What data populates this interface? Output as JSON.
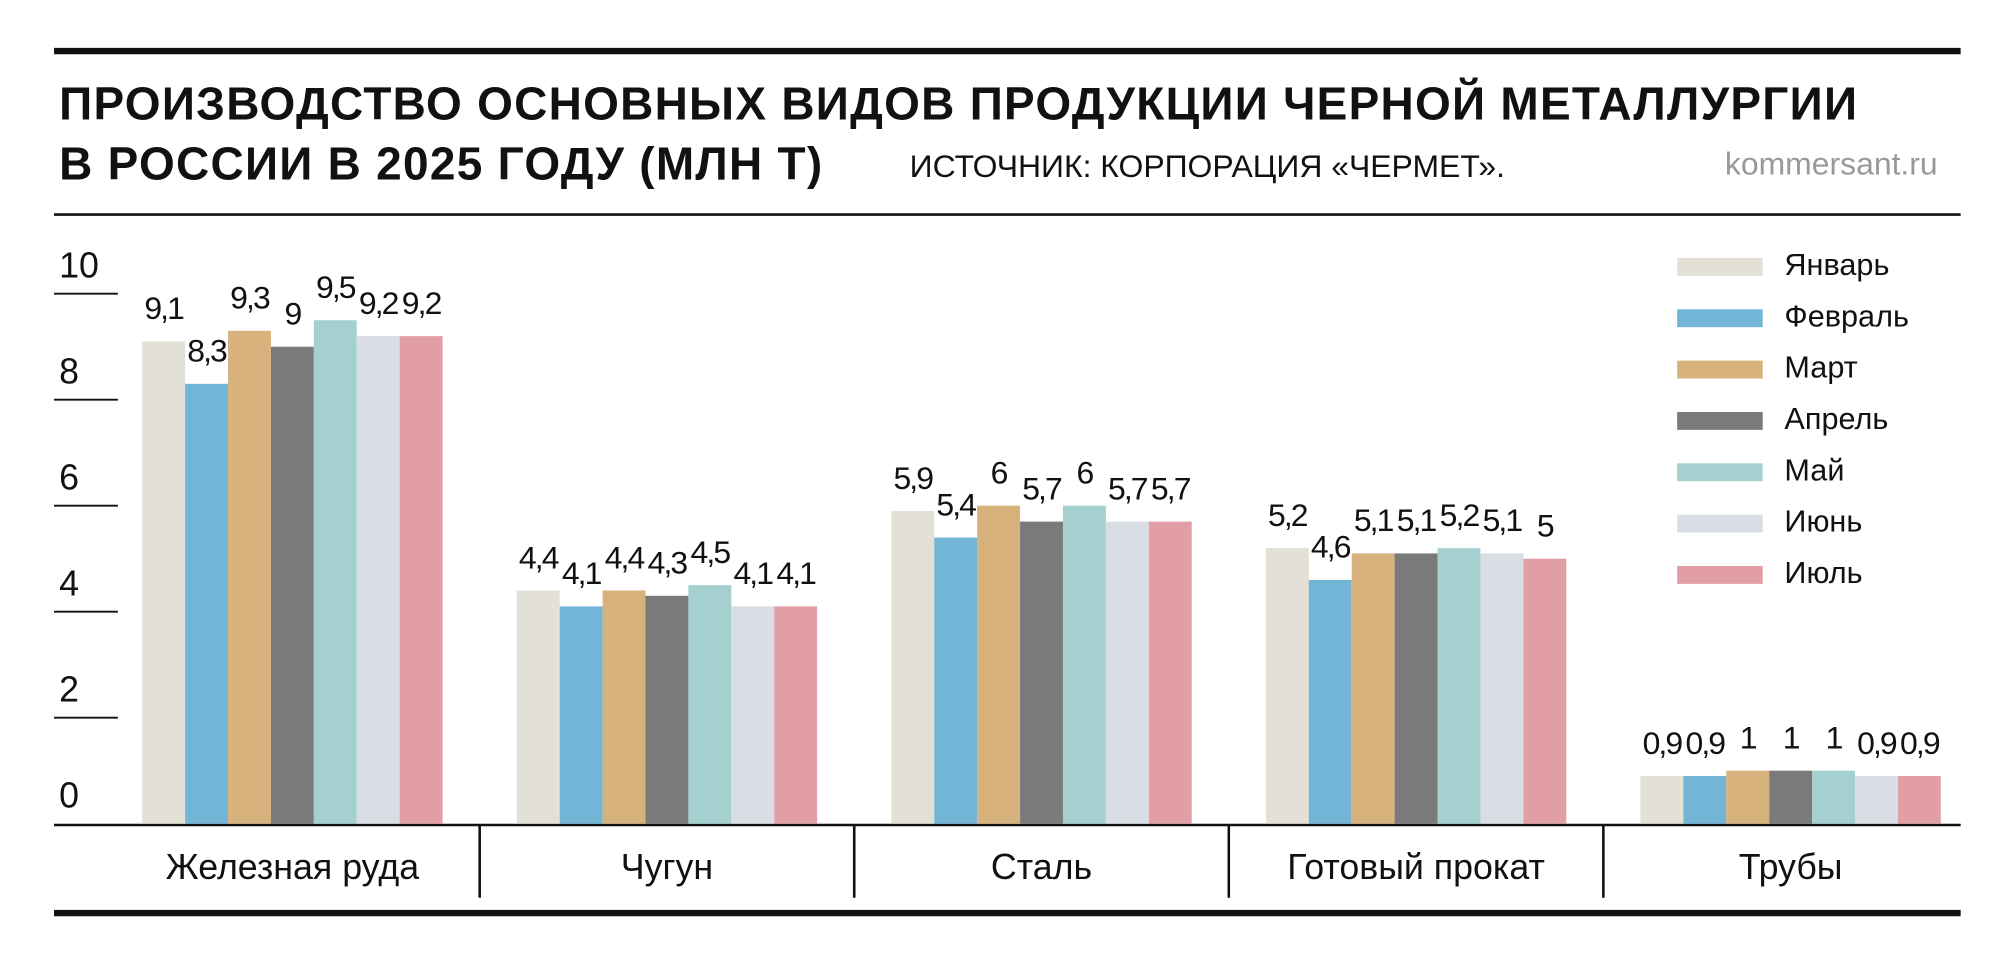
{
  "chart_data": {
    "type": "bar",
    "title": [
      "ПРОИЗВОДСТВО ОСНОВНЫХ ВИДОВ ПРОДУКЦИИ ЧЕРНОЙ МЕТАЛЛУРГИИ",
      "В РОССИИ В 2025 ГОДУ (МЛН Т)"
    ],
    "source": "ИСТОЧНИК: КОРПОРАЦИЯ «ЧЕРМЕТ».",
    "watermark": "kommersant.ru",
    "categories": [
      "Железная руда",
      "Чугун",
      "Сталь",
      "Готовый прокат",
      "Трубы"
    ],
    "series": [
      {
        "name": "Январь",
        "color": "#e3e1d6",
        "values": [
          9.1,
          4.4,
          5.9,
          5.2,
          0.9
        ],
        "value_labels": [
          "9,1",
          "4,4",
          "5,9",
          "5,2",
          "0,9"
        ]
      },
      {
        "name": "Февраль",
        "color": "#72b5d7",
        "values": [
          8.3,
          4.1,
          5.4,
          4.6,
          0.9
        ],
        "value_labels": [
          "8,3",
          "4,1",
          "5,4",
          "4,6",
          "0,9"
        ]
      },
      {
        "name": "Март",
        "color": "#d8b27c",
        "values": [
          9.3,
          4.4,
          6,
          5.1,
          1
        ],
        "value_labels": [
          "9,3",
          "4,4",
          "6",
          "5,1",
          "1"
        ]
      },
      {
        "name": "Апрель",
        "color": "#7a7a7a",
        "values": [
          9,
          4.3,
          5.7,
          5.1,
          1
        ],
        "value_labels": [
          "9",
          "4,3",
          "5,7",
          "5,1",
          "1"
        ]
      },
      {
        "name": "Май",
        "color": "#a4d1cf",
        "values": [
          9.5,
          4.5,
          6,
          5.2,
          1
        ],
        "value_labels": [
          "9,5",
          "4,5",
          "6",
          "5,2",
          "1"
        ]
      },
      {
        "name": "Июнь",
        "color": "#d9dee5",
        "values": [
          9.2,
          4.1,
          5.7,
          5.1,
          0.9
        ],
        "value_labels": [
          "9,2",
          "4,1",
          "5,7",
          "5,1",
          "0,9"
        ]
      },
      {
        "name": "Июль",
        "color": "#e29ea5",
        "values": [
          9.2,
          4.1,
          5.7,
          5,
          0.9
        ],
        "value_labels": [
          "9,2",
          "4,1",
          "5,7",
          "5",
          "0,9"
        ]
      }
    ],
    "ylim": [
      0,
      10
    ],
    "yticks": [
      0,
      2,
      4,
      6,
      8,
      10
    ],
    "legend": "top-right"
  }
}
